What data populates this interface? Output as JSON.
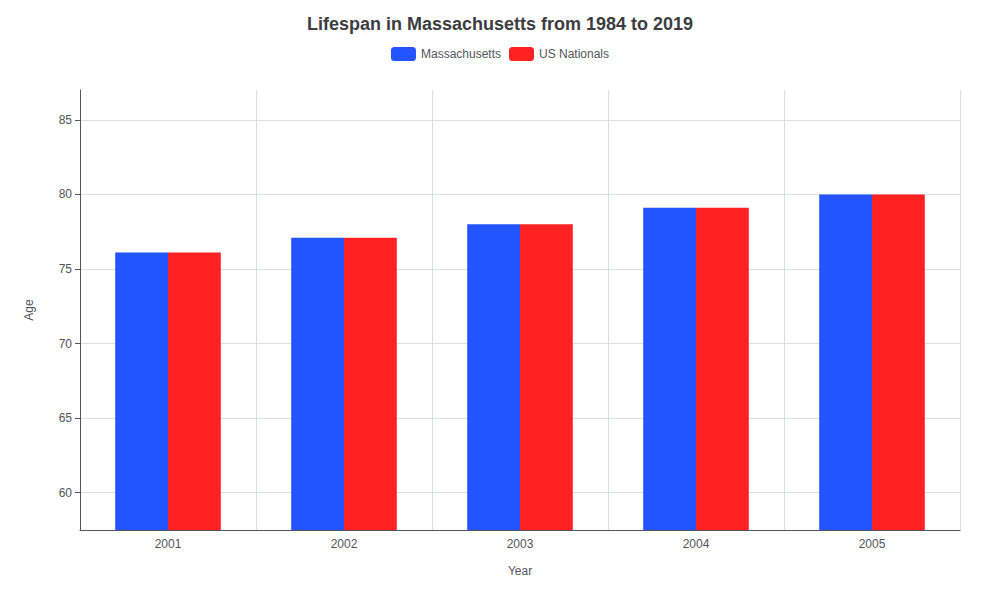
{
  "chart_data": {
    "type": "bar",
    "title": "Lifespan in Massachusetts from 1984 to 2019",
    "x_label": "Year",
    "y_label": "Age",
    "categories": [
      "2001",
      "2002",
      "2003",
      "2004",
      "2005"
    ],
    "series": [
      {
        "name": "Massachusetts",
        "color": "#2255ff",
        "values": [
          76.1,
          77.1,
          78.0,
          79.1,
          80.0
        ]
      },
      {
        "name": "US Nationals",
        "color": "#ff2222",
        "values": [
          76.1,
          77.1,
          78.0,
          79.1,
          80.0
        ]
      }
    ],
    "ylim": [
      57.5,
      87
    ],
    "yticks": [
      60,
      65,
      70,
      75,
      80,
      85
    ],
    "grid": true,
    "legend": "top"
  }
}
